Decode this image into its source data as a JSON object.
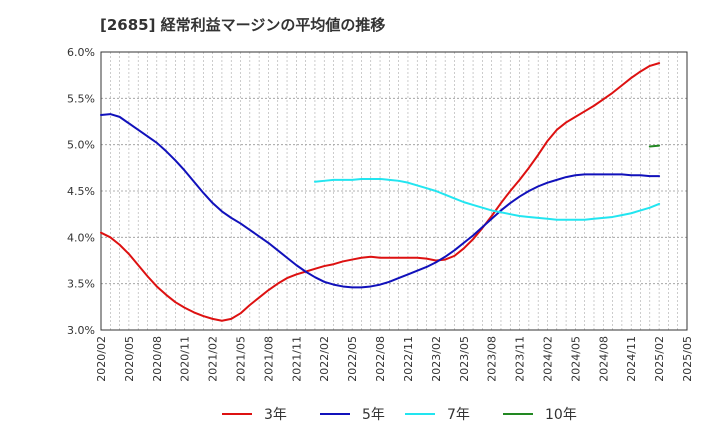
{
  "chart_data": {
    "type": "line",
    "title": "[2685]  経常利益マージンの平均値の推移",
    "xlabel": "",
    "ylabel": "",
    "ylim": [
      3.0,
      6.0
    ],
    "y_ticks": [
      "3.0%",
      "3.5%",
      "4.0%",
      "4.5%",
      "5.0%",
      "5.5%",
      "6.0%"
    ],
    "y_tick_values": [
      3.0,
      3.5,
      4.0,
      4.5,
      5.0,
      5.5,
      6.0
    ],
    "x_ticks": [
      "2020/02",
      "2020/05",
      "2020/08",
      "2020/11",
      "2021/02",
      "2021/05",
      "2021/08",
      "2021/11",
      "2022/02",
      "2022/05",
      "2022/08",
      "2022/11",
      "2023/02",
      "2023/05",
      "2023/08",
      "2023/11",
      "2024/02",
      "2024/05",
      "2024/08",
      "2024/11",
      "2025/02",
      "2025/05"
    ],
    "grid": true,
    "legend_position": "bottom",
    "series": [
      {
        "name": "3年",
        "color": "#dd1111",
        "points": [
          [
            "2020/02",
            4.05
          ],
          [
            "2020/03",
            4.0
          ],
          [
            "2020/04",
            3.92
          ],
          [
            "2020/05",
            3.82
          ],
          [
            "2020/06",
            3.7
          ],
          [
            "2020/07",
            3.58
          ],
          [
            "2020/08",
            3.47
          ],
          [
            "2020/09",
            3.38
          ],
          [
            "2020/10",
            3.3
          ],
          [
            "2020/11",
            3.24
          ],
          [
            "2020/12",
            3.19
          ],
          [
            "2021/01",
            3.15
          ],
          [
            "2021/02",
            3.12
          ],
          [
            "2021/03",
            3.1
          ],
          [
            "2021/04",
            3.12
          ],
          [
            "2021/05",
            3.18
          ],
          [
            "2021/06",
            3.27
          ],
          [
            "2021/07",
            3.35
          ],
          [
            "2021/08",
            3.43
          ],
          [
            "2021/09",
            3.5
          ],
          [
            "2021/10",
            3.56
          ],
          [
            "2021/11",
            3.6
          ],
          [
            "2021/12",
            3.63
          ],
          [
            "2022/01",
            3.66
          ],
          [
            "2022/02",
            3.69
          ],
          [
            "2022/03",
            3.71
          ],
          [
            "2022/04",
            3.74
          ],
          [
            "2022/05",
            3.76
          ],
          [
            "2022/06",
            3.78
          ],
          [
            "2022/07",
            3.79
          ],
          [
            "2022/08",
            3.78
          ],
          [
            "2022/09",
            3.78
          ],
          [
            "2022/10",
            3.78
          ],
          [
            "2022/11",
            3.78
          ],
          [
            "2022/12",
            3.78
          ],
          [
            "2023/01",
            3.77
          ],
          [
            "2023/02",
            3.75
          ],
          [
            "2023/03",
            3.76
          ],
          [
            "2023/04",
            3.8
          ],
          [
            "2023/05",
            3.88
          ],
          [
            "2023/06",
            3.98
          ],
          [
            "2023/07",
            4.1
          ],
          [
            "2023/08",
            4.23
          ],
          [
            "2023/09",
            4.37
          ],
          [
            "2023/10",
            4.5
          ],
          [
            "2023/11",
            4.62
          ],
          [
            "2023/12",
            4.75
          ],
          [
            "2024/01",
            4.89
          ],
          [
            "2024/02",
            5.04
          ],
          [
            "2024/03",
            5.16
          ],
          [
            "2024/04",
            5.24
          ],
          [
            "2024/05",
            5.3
          ],
          [
            "2024/06",
            5.36
          ],
          [
            "2024/07",
            5.42
          ],
          [
            "2024/08",
            5.49
          ],
          [
            "2024/09",
            5.56
          ],
          [
            "2024/10",
            5.64
          ],
          [
            "2024/11",
            5.72
          ],
          [
            "2024/12",
            5.79
          ],
          [
            "2025/01",
            5.85
          ],
          [
            "2025/02",
            5.88
          ]
        ]
      },
      {
        "name": "5年",
        "color": "#1111bb",
        "points": [
          [
            "2020/02",
            5.32
          ],
          [
            "2020/03",
            5.33
          ],
          [
            "2020/04",
            5.3
          ],
          [
            "2020/05",
            5.23
          ],
          [
            "2020/06",
            5.16
          ],
          [
            "2020/07",
            5.09
          ],
          [
            "2020/08",
            5.02
          ],
          [
            "2020/09",
            4.93
          ],
          [
            "2020/10",
            4.83
          ],
          [
            "2020/11",
            4.72
          ],
          [
            "2020/12",
            4.6
          ],
          [
            "2021/01",
            4.48
          ],
          [
            "2021/02",
            4.37
          ],
          [
            "2021/03",
            4.28
          ],
          [
            "2021/04",
            4.21
          ],
          [
            "2021/05",
            4.15
          ],
          [
            "2021/06",
            4.08
          ],
          [
            "2021/07",
            4.01
          ],
          [
            "2021/08",
            3.94
          ],
          [
            "2021/09",
            3.86
          ],
          [
            "2021/10",
            3.78
          ],
          [
            "2021/11",
            3.7
          ],
          [
            "2021/12",
            3.63
          ],
          [
            "2022/01",
            3.57
          ],
          [
            "2022/02",
            3.52
          ],
          [
            "2022/03",
            3.49
          ],
          [
            "2022/04",
            3.47
          ],
          [
            "2022/05",
            3.46
          ],
          [
            "2022/06",
            3.46
          ],
          [
            "2022/07",
            3.47
          ],
          [
            "2022/08",
            3.49
          ],
          [
            "2022/09",
            3.52
          ],
          [
            "2022/10",
            3.56
          ],
          [
            "2022/11",
            3.6
          ],
          [
            "2022/12",
            3.64
          ],
          [
            "2023/01",
            3.68
          ],
          [
            "2023/02",
            3.73
          ],
          [
            "2023/03",
            3.79
          ],
          [
            "2023/04",
            3.86
          ],
          [
            "2023/05",
            3.94
          ],
          [
            "2023/06",
            4.02
          ],
          [
            "2023/07",
            4.11
          ],
          [
            "2023/08",
            4.2
          ],
          [
            "2023/09",
            4.29
          ],
          [
            "2023/10",
            4.37
          ],
          [
            "2023/11",
            4.44
          ],
          [
            "2023/12",
            4.5
          ],
          [
            "2024/01",
            4.55
          ],
          [
            "2024/02",
            4.59
          ],
          [
            "2024/03",
            4.62
          ],
          [
            "2024/04",
            4.65
          ],
          [
            "2024/05",
            4.67
          ],
          [
            "2024/06",
            4.68
          ],
          [
            "2024/07",
            4.68
          ],
          [
            "2024/08",
            4.68
          ],
          [
            "2024/09",
            4.68
          ],
          [
            "2024/10",
            4.68
          ],
          [
            "2024/11",
            4.67
          ],
          [
            "2024/12",
            4.67
          ],
          [
            "2025/01",
            4.66
          ],
          [
            "2025/02",
            4.66
          ]
        ]
      },
      {
        "name": "7年",
        "color": "#22e5f0",
        "points": [
          [
            "2022/01",
            4.6
          ],
          [
            "2022/02",
            4.61
          ],
          [
            "2022/03",
            4.62
          ],
          [
            "2022/04",
            4.62
          ],
          [
            "2022/05",
            4.62
          ],
          [
            "2022/06",
            4.63
          ],
          [
            "2022/07",
            4.63
          ],
          [
            "2022/08",
            4.63
          ],
          [
            "2022/09",
            4.62
          ],
          [
            "2022/10",
            4.61
          ],
          [
            "2022/11",
            4.59
          ],
          [
            "2022/12",
            4.56
          ],
          [
            "2023/01",
            4.53
          ],
          [
            "2023/02",
            4.5
          ],
          [
            "2023/03",
            4.46
          ],
          [
            "2023/04",
            4.42
          ],
          [
            "2023/05",
            4.38
          ],
          [
            "2023/06",
            4.35
          ],
          [
            "2023/07",
            4.32
          ],
          [
            "2023/08",
            4.29
          ],
          [
            "2023/09",
            4.27
          ],
          [
            "2023/10",
            4.25
          ],
          [
            "2023/11",
            4.23
          ],
          [
            "2023/12",
            4.22
          ],
          [
            "2024/01",
            4.21
          ],
          [
            "2024/02",
            4.2
          ],
          [
            "2024/03",
            4.19
          ],
          [
            "2024/04",
            4.19
          ],
          [
            "2024/05",
            4.19
          ],
          [
            "2024/06",
            4.19
          ],
          [
            "2024/07",
            4.2
          ],
          [
            "2024/08",
            4.21
          ],
          [
            "2024/09",
            4.22
          ],
          [
            "2024/10",
            4.24
          ],
          [
            "2024/11",
            4.26
          ],
          [
            "2024/12",
            4.29
          ],
          [
            "2025/01",
            4.32
          ],
          [
            "2025/02",
            4.36
          ]
        ]
      },
      {
        "name": "10年",
        "color": "#228822",
        "points": [
          [
            "2025/01",
            4.98
          ],
          [
            "2025/02",
            4.99
          ]
        ]
      }
    ]
  }
}
